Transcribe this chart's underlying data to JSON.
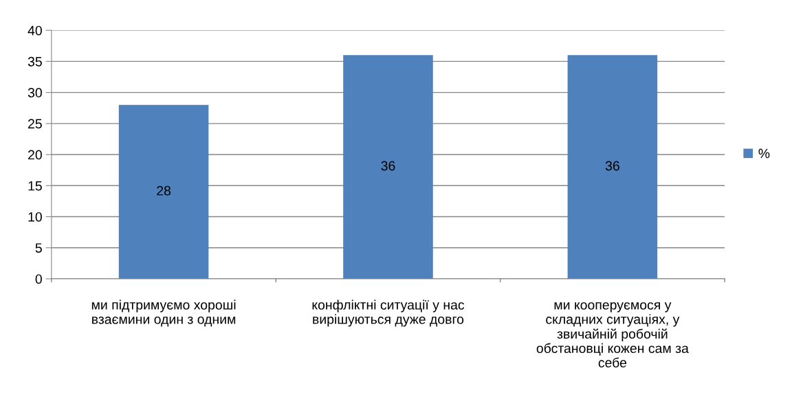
{
  "chart_data": {
    "type": "bar",
    "categories": [
      "ми підтримуємо хороші\nвзаємини один з одним",
      "конфліктні ситуації у нас\nвирішуються дуже довго",
      "ми кооперуємося у\nскладних ситуаціях, у\nзвичайній робочій\nобстановці кожен сам за\nсебе"
    ],
    "series": [
      {
        "name": "%",
        "color": "#4f81bd",
        "values": [
          28,
          36,
          36
        ]
      }
    ],
    "ylim": [
      0,
      40
    ],
    "yticks": [
      0,
      5,
      10,
      15,
      20,
      25,
      30,
      35,
      40
    ],
    "grid": "y",
    "legend": "right",
    "data_labels": true
  }
}
